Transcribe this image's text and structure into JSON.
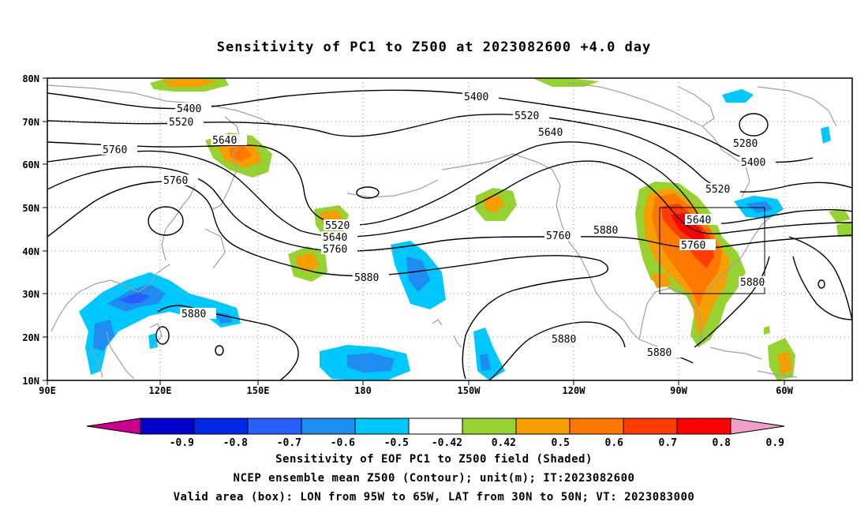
{
  "title": "Sensitivity of PC1 to Z500 at 2023082600 +4.0 day",
  "map": {
    "lon_labels": [
      "90E",
      "120E",
      "150E",
      "180",
      "150W",
      "120W",
      "90W",
      "60W"
    ],
    "lat_labels": [
      "80N",
      "70N",
      "60N",
      "50N",
      "40N",
      "30N",
      "20N",
      "10N"
    ],
    "contour_labels": [
      "5400",
      "5520",
      "5640",
      "5760",
      "5880",
      "5280",
      "5400",
      "5520",
      "5640",
      "5760",
      "5880",
      "5400",
      "5520",
      "5640",
      "5760",
      "5880",
      "5880",
      "5880",
      "5880",
      "5760",
      "5880"
    ],
    "coastline_color": "#a0a0a0",
    "contour_color": "#000000",
    "box": {
      "lon_from": "95W",
      "lon_to": "65W",
      "lat_from": "30N",
      "lat_to": "50N"
    }
  },
  "colorbar": {
    "labels": [
      "-0.9",
      "-0.8",
      "-0.7",
      "-0.6",
      "-0.5",
      "-0.42",
      "0.42",
      "0.5",
      "0.6",
      "0.7",
      "0.8",
      "0.9"
    ],
    "colors": [
      "#c8008c",
      "#0000c8",
      "#0028e6",
      "#2860ff",
      "#1e8cf0",
      "#00c8ff",
      "#ffffff",
      "#96d232",
      "#f5a000",
      "#ff7800",
      "#ff3c00",
      "#ff0000",
      "#f0a0c8"
    ]
  },
  "caption": {
    "line1": "Sensitivity of EOF PC1 to Z500 field (Shaded)",
    "line2": "NCEP ensemble mean Z500 (Contour); unit(m); IT:2023082600",
    "line3": "Valid area (box): LON from 95W to 65W, LAT from 30N to 50N; VT: 2023083000"
  }
}
